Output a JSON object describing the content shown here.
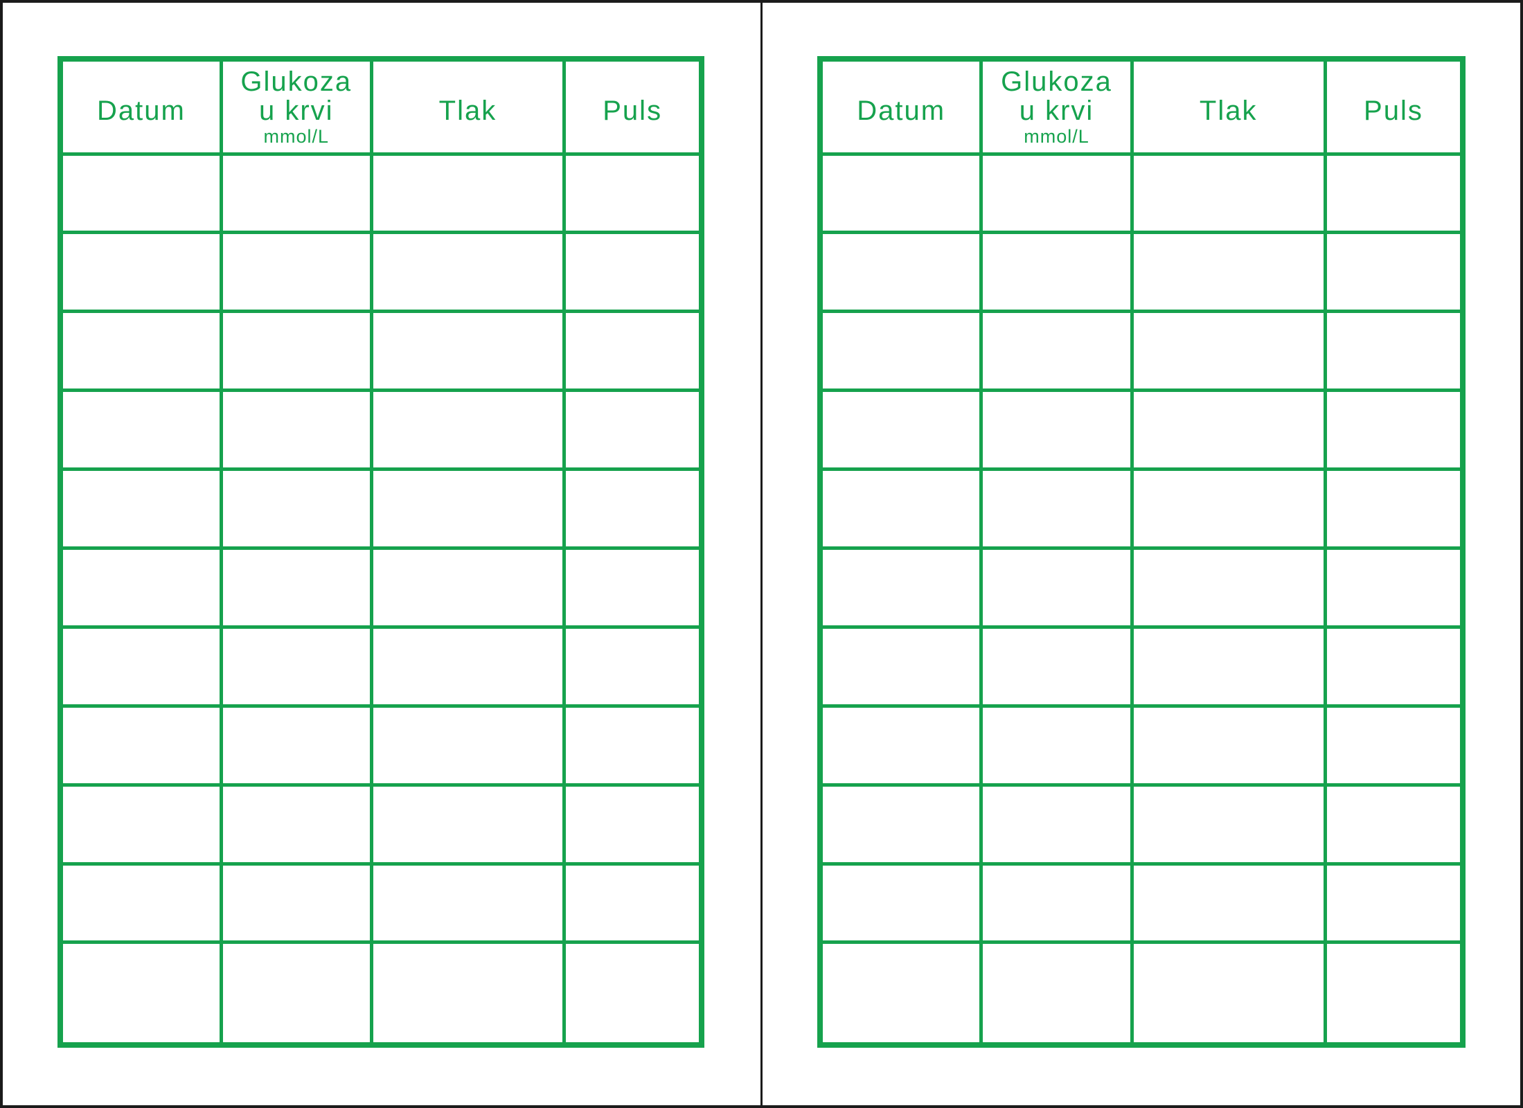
{
  "theme": {
    "accent_green": "#16a24d",
    "frame_black": "#1b1b1b",
    "paper_white": "#ffffff"
  },
  "page": {
    "description": "Two identical blank health-log table pages side by side, separated by a vertical fold line"
  },
  "sheets": [
    {
      "side": "left",
      "row_count": 11,
      "columns": [
        {
          "label": "Datum"
        },
        {
          "label_line1": "Glukoza",
          "label_line2": "u krvi",
          "sublabel": "mmol/L"
        },
        {
          "label": "Tlak"
        },
        {
          "label": "Puls"
        }
      ]
    },
    {
      "side": "right",
      "row_count": 11,
      "columns": [
        {
          "label": "Datum"
        },
        {
          "label_line1": "Glukoza",
          "label_line2": "u krvi",
          "sublabel": "mmol/L"
        },
        {
          "label": "Tlak"
        },
        {
          "label": "Puls"
        }
      ]
    }
  ]
}
